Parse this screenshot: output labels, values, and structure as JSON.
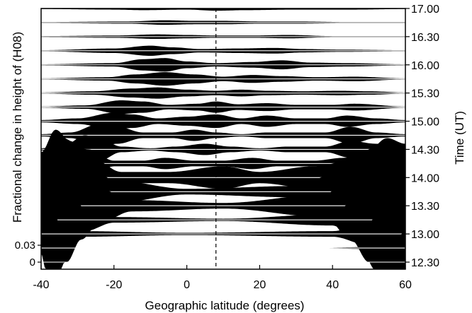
{
  "chart_data": {
    "type": "area",
    "xlabel": "Geographic latitude (degrees)",
    "ylabel_left": "Fractional change in height of (H08)",
    "ylabel_right": "Time (UT)",
    "xlim": [
      -40,
      60
    ],
    "x_ticks": [
      -40,
      -20,
      0,
      20,
      40,
      60
    ],
    "x_tick_labels": [
      "-40",
      "-20",
      "0",
      "20",
      "40",
      "60"
    ],
    "y_scale_ticks": [
      "0.03",
      "0"
    ],
    "reference_latitude": 8,
    "series": [
      {
        "time": "12.30",
        "values": [
          [
            -40,
            0
          ],
          [
            60,
            0
          ]
        ]
      },
      {
        "time": "12.45",
        "values": [
          [
            -40,
            0
          ],
          [
            -20,
            0
          ],
          [
            30,
            0
          ],
          [
            54,
            0.002
          ],
          [
            57,
            0.012
          ],
          [
            60,
            0.03
          ]
        ]
      },
      {
        "time": "13.00",
        "values": [
          [
            -40,
            0.03
          ],
          [
            -39,
            0.06
          ],
          [
            -37,
            0.05
          ],
          [
            -35,
            0.02
          ],
          [
            -30,
            0.005
          ],
          [
            0,
            0.002
          ],
          [
            40,
            0.005
          ],
          [
            50,
            0.02
          ],
          [
            54,
            0.06
          ],
          [
            57,
            0.09
          ],
          [
            60,
            0.1
          ]
        ]
      },
      {
        "time": "13.15",
        "values": [
          [
            -40,
            0.06
          ],
          [
            -38,
            0.1
          ],
          [
            -35,
            0.09
          ],
          [
            -32,
            0.05
          ],
          [
            -28,
            0.02
          ],
          [
            -20,
            0.005
          ],
          [
            10,
            0.002
          ],
          [
            40,
            0.01
          ],
          [
            47,
            0.04
          ],
          [
            52,
            0.09
          ],
          [
            56,
            0.12
          ],
          [
            60,
            0.12
          ]
        ]
      },
      {
        "time": "13.30",
        "values": [
          [
            -40,
            0.08
          ],
          [
            -37,
            0.12
          ],
          [
            -33,
            0.1
          ],
          [
            -29,
            0.06
          ],
          [
            -24,
            0.03
          ],
          [
            -15,
            0.01
          ],
          [
            10,
            0.005
          ],
          [
            38,
            0.02
          ],
          [
            45,
            0.06
          ],
          [
            50,
            0.1
          ],
          [
            55,
            0.12
          ],
          [
            60,
            0.11
          ]
        ]
      },
      {
        "time": "13.45",
        "values": [
          [
            -40,
            0.07
          ],
          [
            -36,
            0.11
          ],
          [
            -32,
            0.09
          ],
          [
            -27,
            0.05
          ],
          [
            -20,
            0.02
          ],
          [
            0,
            0.005
          ],
          [
            30,
            0.01
          ],
          [
            40,
            0.03
          ],
          [
            46,
            0.06
          ],
          [
            52,
            0.08
          ],
          [
            56,
            0.08
          ],
          [
            60,
            0.06
          ]
        ]
      },
      {
        "time": "14.00",
        "values": [
          [
            -40,
            0.04
          ],
          [
            -34,
            0.07
          ],
          [
            -30,
            0.06
          ],
          [
            -25,
            0.03
          ],
          [
            -18,
            0.01
          ],
          [
            -5,
            0.01
          ],
          [
            10,
            0.02
          ],
          [
            20,
            0.01
          ],
          [
            35,
            0.02
          ],
          [
            45,
            0.03
          ],
          [
            50,
            0.045
          ],
          [
            55,
            0.04
          ],
          [
            60,
            0.02
          ]
        ]
      },
      {
        "time": "14.15",
        "values": [
          [
            -40,
            0.005
          ],
          [
            -35,
            0.02
          ],
          [
            -31,
            0.03
          ],
          [
            -27,
            0.025
          ],
          [
            -20,
            0.005
          ],
          [
            -12,
            0.005
          ],
          [
            -6,
            0.01
          ],
          [
            2,
            0.005
          ],
          [
            10,
            0.005
          ],
          [
            18,
            0.01
          ],
          [
            25,
            0.005
          ],
          [
            35,
            0.005
          ],
          [
            43,
            0.01
          ],
          [
            50,
            0.02
          ],
          [
            56,
            0.02
          ],
          [
            60,
            0.01
          ]
        ]
      },
      {
        "time": "14.30",
        "values": [
          [
            -40,
            0.002
          ],
          [
            -33,
            0.01
          ],
          [
            -28,
            0.025
          ],
          [
            -24,
            0.02
          ],
          [
            -18,
            0.005
          ],
          [
            -10,
            0.002
          ],
          [
            -3,
            0.005
          ],
          [
            5,
            0.01
          ],
          [
            12,
            0.005
          ],
          [
            20,
            0.002
          ],
          [
            28,
            0.005
          ],
          [
            38,
            0.005
          ],
          [
            45,
            0.015
          ],
          [
            52,
            0.01
          ],
          [
            60,
            0.002
          ]
        ]
      },
      {
        "time": "14.45",
        "values": [
          [
            -40,
            0.002
          ],
          [
            -32,
            0.005
          ],
          [
            -24,
            0.02
          ],
          [
            -19,
            0.015
          ],
          [
            -12,
            0.005
          ],
          [
            -4,
            0.005
          ],
          [
            2,
            0.01
          ],
          [
            8,
            0.005
          ],
          [
            15,
            0.002
          ],
          [
            22,
            0.005
          ],
          [
            30,
            0.005
          ],
          [
            38,
            0.005
          ],
          [
            45,
            0.015
          ],
          [
            52,
            0.005
          ],
          [
            60,
            0.002
          ]
        ]
      },
      {
        "time": "15.00",
        "values": [
          [
            -40,
            0.002
          ],
          [
            -30,
            0.005
          ],
          [
            -20,
            0.015
          ],
          [
            -15,
            0.012
          ],
          [
            -8,
            0.005
          ],
          [
            0,
            0.008
          ],
          [
            8,
            0.012
          ],
          [
            15,
            0.005
          ],
          [
            22,
            0.01
          ],
          [
            30,
            0.005
          ],
          [
            38,
            0.005
          ],
          [
            44,
            0.01
          ],
          [
            52,
            0.005
          ],
          [
            60,
            0.002
          ]
        ]
      },
      {
        "time": "15.15",
        "values": [
          [
            -40,
            0.001
          ],
          [
            -28,
            0.003
          ],
          [
            -18,
            0.012
          ],
          [
            -12,
            0.01
          ],
          [
            -5,
            0.004
          ],
          [
            3,
            0.006
          ],
          [
            8,
            0.01
          ],
          [
            14,
            0.005
          ],
          [
            22,
            0.007
          ],
          [
            30,
            0.004
          ],
          [
            40,
            0.004
          ],
          [
            46,
            0.006
          ],
          [
            60,
            0.001
          ]
        ]
      },
      {
        "time": "15.30",
        "values": [
          [
            -40,
            0.001
          ],
          [
            -26,
            0.003
          ],
          [
            -15,
            0.008
          ],
          [
            -8,
            0.01
          ],
          [
            0,
            0.006
          ],
          [
            8,
            0.004
          ],
          [
            15,
            0.006
          ],
          [
            22,
            0.004
          ],
          [
            32,
            0.003
          ],
          [
            42,
            0.004
          ],
          [
            50,
            0.003
          ],
          [
            60,
            0.001
          ]
        ]
      },
      {
        "time": "15.45",
        "values": [
          [
            -40,
            0.001
          ],
          [
            -22,
            0.003
          ],
          [
            -14,
            0.008
          ],
          [
            -6,
            0.012
          ],
          [
            2,
            0.008
          ],
          [
            10,
            0.004
          ],
          [
            18,
            0.007
          ],
          [
            26,
            0.005
          ],
          [
            36,
            0.003
          ],
          [
            46,
            0.004
          ],
          [
            60,
            0.001
          ]
        ]
      },
      {
        "time": "16.00",
        "values": [
          [
            -40,
            0.001
          ],
          [
            -20,
            0.003
          ],
          [
            -12,
            0.01
          ],
          [
            -6,
            0.012
          ],
          [
            0,
            0.006
          ],
          [
            8,
            0.003
          ],
          [
            18,
            0.005
          ],
          [
            26,
            0.008
          ],
          [
            34,
            0.004
          ],
          [
            44,
            0.003
          ],
          [
            60,
            0.001
          ]
        ]
      },
      {
        "time": "16.15",
        "values": [
          [
            -40,
            0.001
          ],
          [
            -20,
            0.004
          ],
          [
            -10,
            0.009
          ],
          [
            -4,
            0.006
          ],
          [
            4,
            0.003
          ],
          [
            14,
            0.004
          ],
          [
            24,
            0.005
          ],
          [
            32,
            0.003
          ],
          [
            42,
            0.002
          ],
          [
            60,
            0.001
          ]
        ]
      },
      {
        "time": "16.30",
        "values": [
          [
            -40,
            0.001
          ],
          [
            -20,
            0.002
          ],
          [
            -8,
            0.004
          ],
          [
            0,
            0.003
          ],
          [
            8,
            0.002
          ],
          [
            18,
            0.002
          ],
          [
            28,
            0.003
          ],
          [
            40,
            0.001
          ],
          [
            60,
            0.001
          ]
        ]
      },
      {
        "time": "16.45",
        "values": [
          [
            -40,
            0.001
          ],
          [
            -16,
            0.002
          ],
          [
            -6,
            0.004
          ],
          [
            2,
            0.003
          ],
          [
            10,
            0.003
          ],
          [
            20,
            0.002
          ],
          [
            30,
            0.002
          ],
          [
            44,
            0.001
          ],
          [
            60,
            0.001
          ]
        ]
      },
      {
        "time": "17.00",
        "values": [
          [
            -40,
            0.001
          ],
          [
            -20,
            0.002
          ],
          [
            -12,
            0.003
          ],
          [
            0,
            0.002
          ],
          [
            8,
            0.004
          ],
          [
            16,
            0.003
          ],
          [
            30,
            0.002
          ],
          [
            46,
            0.002
          ],
          [
            60,
            0.001
          ]
        ]
      }
    ],
    "time_labels": [
      "12.30",
      "13.00",
      "13.30",
      "14.00",
      "14.30",
      "15.00",
      "15.30",
      "16.00",
      "16.30",
      "17.00"
    ],
    "grid": false
  }
}
